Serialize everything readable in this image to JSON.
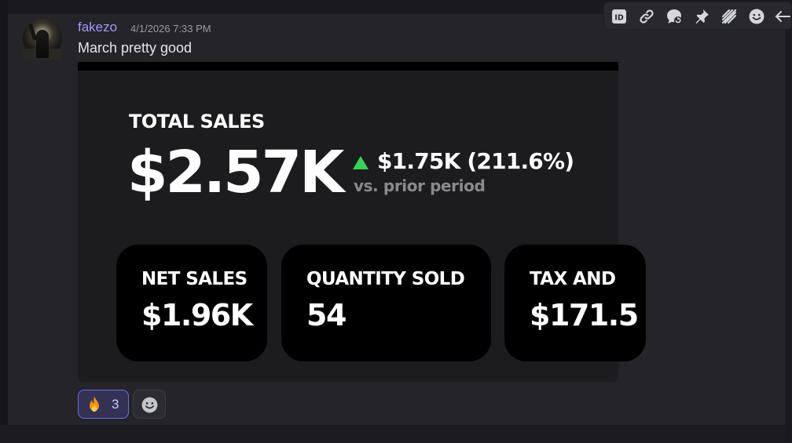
{
  "message": {
    "author": "fakezo",
    "timestamp": "4/1/2026 7:33 PM",
    "text": "March pretty good"
  },
  "toolbar": {
    "icons": [
      "app-id-icon",
      "link-icon",
      "reply-thread-icon",
      "pin-icon",
      "forward-icon",
      "emoji-icon",
      "back-arrow-icon"
    ]
  },
  "embed": {
    "title": "TOTAL SALES",
    "total_value": "$2.57K",
    "delta_value": "$1.75K (211.6%)",
    "delta_caption": "vs. prior period",
    "delta_color": "#39d353",
    "cards": [
      {
        "label": "NET SALES",
        "value": "$1.96K"
      },
      {
        "label": "QUANTITY SOLD",
        "value": "54"
      },
      {
        "label": "TAX AND",
        "value": "$171.5"
      }
    ]
  },
  "reactions": {
    "fire": {
      "emoji": "fire-icon",
      "count": "3"
    }
  },
  "colors": {
    "accent": "#6c6fe4",
    "username": "#a596ff",
    "background": "#242429"
  }
}
